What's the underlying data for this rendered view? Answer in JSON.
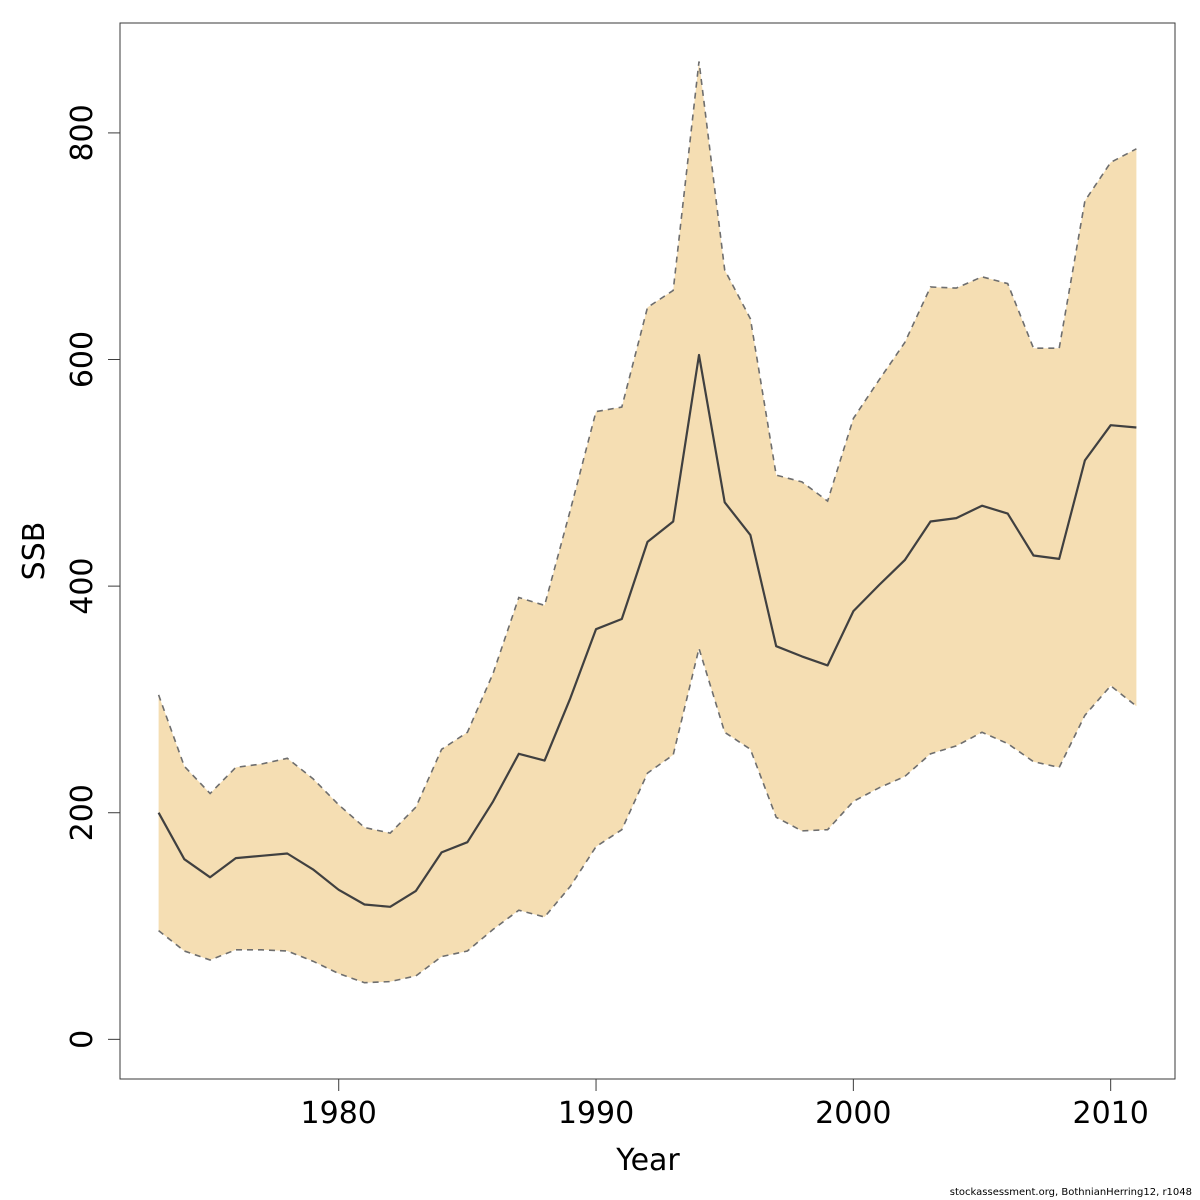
{
  "chart_data": {
    "type": "area",
    "xlabel": "Year",
    "ylabel": "SSB",
    "xlim": [
      1971.5,
      2012.5
    ],
    "ylim": [
      -35,
      897
    ],
    "x_ticks": [
      1980,
      1990,
      2000,
      2010
    ],
    "y_ticks": [
      0,
      200,
      400,
      600,
      800
    ],
    "grid": false,
    "legend": "none",
    "colors": {
      "band": "#f5deb3",
      "line": "#404040",
      "bound": "#6e6e6e",
      "axis": "#3a3a3a"
    },
    "x": [
      1973,
      1974,
      1975,
      1976,
      1977,
      1978,
      1979,
      1980,
      1981,
      1982,
      1983,
      1984,
      1985,
      1986,
      1987,
      1988,
      1989,
      1990,
      1991,
      1992,
      1993,
      1994,
      1995,
      1996,
      1997,
      1998,
      1999,
      2000,
      2001,
      2002,
      2003,
      2004,
      2005,
      2006,
      2007,
      2008,
      2009,
      2010,
      2011
    ],
    "series": [
      {
        "role": "estimate",
        "values": [
          200,
          159,
          143,
          160,
          162,
          164,
          150,
          132,
          119,
          117,
          131,
          165,
          174,
          210,
          252,
          246,
          301,
          362,
          371,
          439,
          457,
          604,
          474,
          445,
          347,
          338,
          330,
          378,
          401,
          423,
          457,
          460,
          471,
          464,
          427,
          424,
          511,
          542,
          540
        ]
      },
      {
        "role": "upper",
        "values": [
          304,
          241,
          217,
          240,
          243,
          248,
          230,
          207,
          187,
          182,
          205,
          256,
          271,
          323,
          390,
          383,
          467,
          554,
          558,
          646,
          661,
          863,
          679,
          636,
          498,
          492,
          475,
          548,
          582,
          615,
          664,
          663,
          673,
          667,
          610,
          610,
          740,
          774,
          786
        ]
      },
      {
        "role": "lower",
        "values": [
          96,
          78,
          70,
          79,
          79,
          78,
          69,
          58,
          50,
          51,
          56,
          73,
          78,
          97,
          114,
          108,
          135,
          170,
          185,
          235,
          251,
          345,
          271,
          256,
          196,
          184,
          185,
          210,
          222,
          232,
          252,
          259,
          271,
          261,
          245,
          240,
          286,
          312,
          294
        ]
      }
    ]
  },
  "credit": "stockassessment.org, BothnianHerring12, r1048"
}
